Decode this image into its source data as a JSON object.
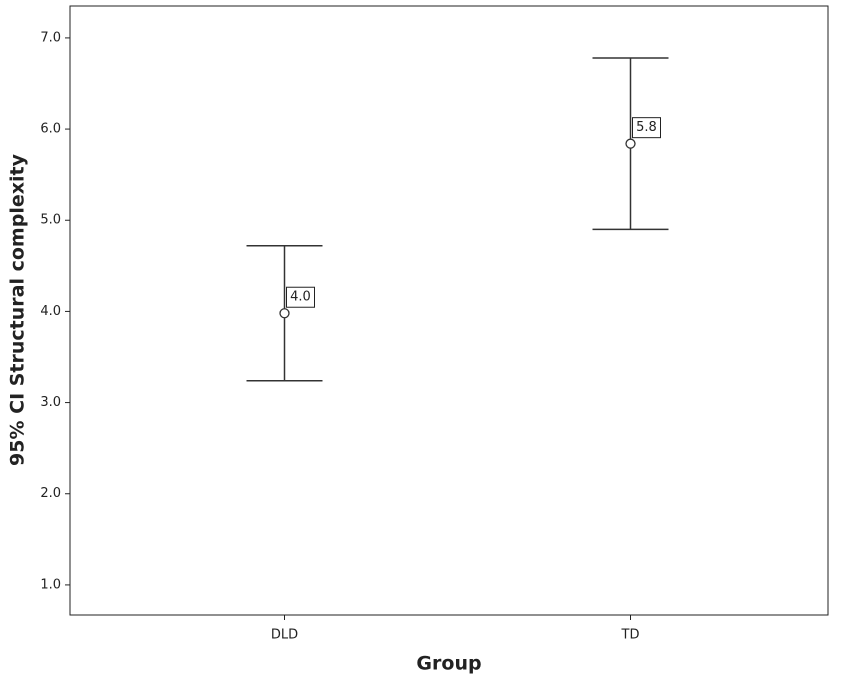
{
  "chart_data": {
    "type": "errorbar",
    "x_label": "Group",
    "y_label": "95% CI Structural complexity",
    "categories": [
      "DLD",
      "TD"
    ],
    "values": [
      3.98,
      5.84
    ],
    "value_labels": [
      "4.0",
      "5.8"
    ],
    "lower": [
      3.24,
      4.9
    ],
    "upper": [
      4.72,
      6.78
    ],
    "color": "#333333",
    "ylim": [
      0.67,
      7.35
    ],
    "yticks": [
      {
        "value": 1,
        "label": "1.0"
      },
      {
        "value": 2,
        "label": "2.0"
      },
      {
        "value": 3,
        "label": "3.0"
      },
      {
        "value": 4,
        "label": "4.0"
      },
      {
        "value": 5,
        "label": "5.0"
      },
      {
        "value": 6,
        "label": "6.0"
      },
      {
        "value": 7,
        "label": "7.0"
      }
    ]
  }
}
